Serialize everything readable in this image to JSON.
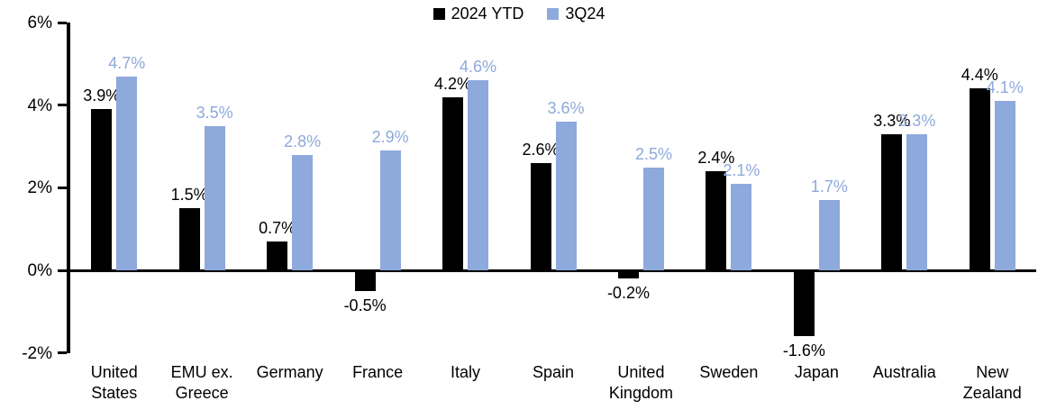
{
  "chart_data": {
    "type": "bar",
    "title": "",
    "categories": [
      "United\nStates",
      "EMU ex.\nGreece",
      "Germany",
      "France",
      "Italy",
      "Spain",
      "United\nKingdom",
      "Sweden",
      "Japan",
      "Australia",
      "New\nZealand"
    ],
    "series": [
      {
        "name": "2024 YTD",
        "color": "#000000",
        "label_color": "#000000",
        "values": [
          3.9,
          1.5,
          0.7,
          -0.5,
          4.2,
          2.6,
          -0.2,
          2.4,
          -1.6,
          3.3,
          4.4
        ]
      },
      {
        "name": "3Q24",
        "color": "#8EA9DB",
        "label_color": "#8EA9DB",
        "values": [
          4.7,
          3.5,
          2.8,
          2.9,
          4.6,
          3.6,
          2.5,
          2.1,
          1.7,
          3.3,
          4.1
        ]
      }
    ],
    "ylim": [
      -2,
      6
    ],
    "yticks": [
      {
        "value": 6,
        "label": "6%"
      },
      {
        "value": 4,
        "label": "4%"
      },
      {
        "value": 2,
        "label": "2%"
      },
      {
        "value": 0,
        "label": "0%"
      },
      {
        "value": -2,
        "label": "-2%"
      }
    ],
    "label_suffix": "%",
    "data_labels": true,
    "legend_position": "top-center",
    "grid": false,
    "axis_color": "#000000",
    "background_color": "#ffffff"
  }
}
